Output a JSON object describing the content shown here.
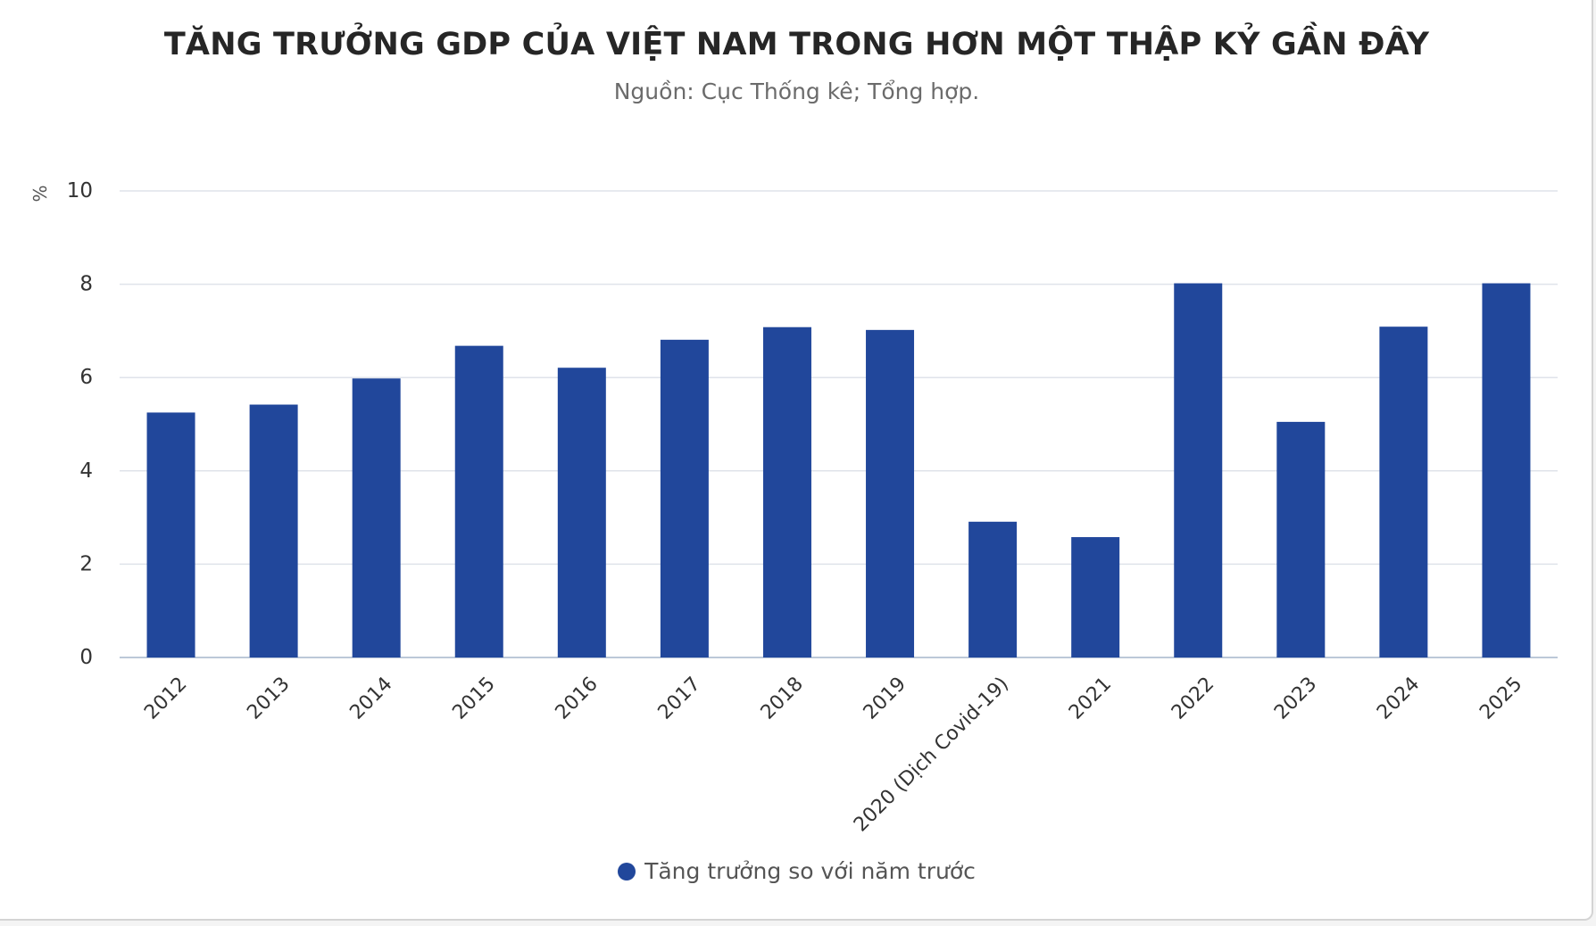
{
  "chart_data": {
    "type": "bar",
    "title": "TĂNG TRƯỞNG GDP CỦA VIỆT NAM TRONG HƠN MỘT THẬP KỶ GẦN ĐÂY",
    "subtitle": "Nguồn: Cục Thống kê; Tổng hợp.",
    "ylabel": "%",
    "xlabel": "",
    "ylim": [
      0,
      10
    ],
    "yticks": [
      "0",
      "2",
      "4",
      "6",
      "8",
      "10"
    ],
    "grid": true,
    "legend_position": "bottom",
    "categories": [
      "2012",
      "2013",
      "2014",
      "2015",
      "2016",
      "2017",
      "2018",
      "2019",
      "2020 (Dịch Covid-19)",
      "2021",
      "2022",
      "2023",
      "2024",
      "2025"
    ],
    "series": [
      {
        "name": "Tăng trưởng so với năm trước",
        "color": "#21479b",
        "values": [
          5.25,
          5.42,
          5.98,
          6.68,
          6.21,
          6.81,
          7.08,
          7.02,
          2.91,
          2.58,
          8.02,
          5.05,
          7.09,
          8.02
        ]
      }
    ]
  }
}
